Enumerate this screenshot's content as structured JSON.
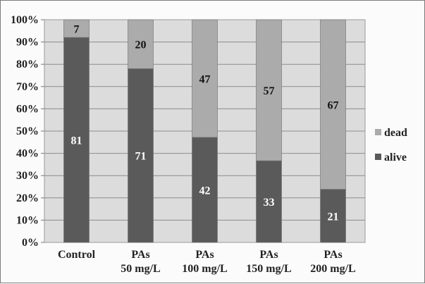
{
  "chart_data": {
    "type": "bar",
    "stacked": true,
    "percent_stacked": true,
    "categories": [
      [
        "Control"
      ],
      [
        "PAs",
        "50 mg/L"
      ],
      [
        "PAs",
        "100 mg/L"
      ],
      [
        "PAs",
        "150 mg/L"
      ],
      [
        "PAs",
        "200 mg/L"
      ]
    ],
    "series": [
      {
        "name": "alive",
        "values": [
          81,
          71,
          42,
          33,
          21
        ],
        "color": "#5a5a5a",
        "label_color": "#ffffff"
      },
      {
        "name": "dead",
        "values": [
          7,
          20,
          47,
          57,
          67
        ],
        "color": "#ababab",
        "label_color": "#111111"
      }
    ],
    "y_ticks": [
      "0%",
      "10%",
      "20%",
      "30%",
      "40%",
      "50%",
      "60%",
      "70%",
      "80%",
      "90%",
      "100%"
    ],
    "ylim": [
      0,
      100
    ],
    "grid": true,
    "legend_position": "right",
    "legend_order": [
      "dead",
      "alive"
    ],
    "title": "",
    "xlabel": "",
    "ylabel": ""
  }
}
